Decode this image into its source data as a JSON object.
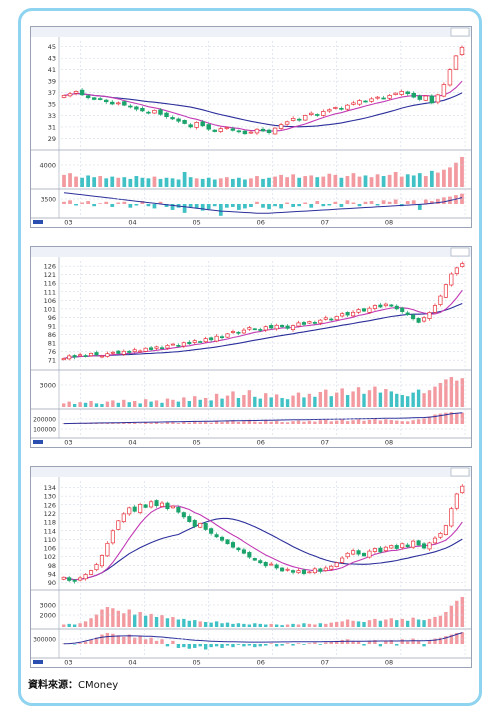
{
  "source": {
    "label": "資料來源：",
    "value": "CMoney"
  },
  "colors": {
    "up": "#e8323c",
    "down": "#1aa36a",
    "ma_short": "#c23bb5",
    "ma_long": "#2b2f9a",
    "vol_up": "#f29aa0",
    "vol_down": "#3fc1c6",
    "grid": "#c9d2e2"
  },
  "chart_data": [
    {
      "type": "candlestick",
      "price": {
        "y_ticks": [
          45,
          43,
          41,
          39,
          37,
          35,
          33,
          31,
          29
        ],
        "ylim": [
          27.5,
          46
        ],
        "closes": [
          36.5,
          36.8,
          37.2,
          36.6,
          36.1,
          35.8,
          35.9,
          35.4,
          35.0,
          35.2,
          34.8,
          34.5,
          34.1,
          33.8,
          33.5,
          33.9,
          33.2,
          32.8,
          32.4,
          32.0,
          31.6,
          31.0,
          31.8,
          31.2,
          30.6,
          30.2,
          30.7,
          30.9,
          30.4,
          30.2,
          29.8,
          30.1,
          30.6,
          30.3,
          30.0,
          30.8,
          31.4,
          31.9,
          32.5,
          32.2,
          33.0,
          33.4,
          33.1,
          33.7,
          34.0,
          34.4,
          34.1,
          34.8,
          35.2,
          35.6,
          35.4,
          35.9,
          36.2,
          36.0,
          36.5,
          36.9,
          37.2,
          36.8,
          36.2,
          35.8,
          36.4,
          35.2,
          36.6,
          38.4,
          41.0,
          43.4,
          44.9
        ]
      },
      "volume": {
        "y_ticks": [
          4000
        ],
        "values": [
          2.1,
          2.4,
          1.8,
          1.6,
          2.0,
          1.7,
          1.9,
          1.5,
          1.8,
          1.6,
          1.7,
          1.4,
          1.9,
          1.6,
          1.5,
          1.8,
          1.4,
          1.6,
          1.5,
          1.3,
          2.6,
          1.7,
          1.5,
          1.4,
          1.6,
          1.3,
          1.5,
          1.7,
          1.4,
          1.6,
          1.3,
          1.5,
          1.9,
          1.4,
          1.6,
          1.8,
          2.1,
          1.7,
          2.2,
          1.6,
          1.9,
          2.0,
          1.7,
          1.8,
          2.3,
          2.1,
          1.6,
          1.9,
          2.4,
          1.8,
          2.0,
          1.7,
          2.2,
          1.9,
          2.1,
          2.6,
          1.8,
          2.2,
          2.0,
          2.4,
          1.9,
          2.8,
          2.5,
          3.0,
          3.4,
          4.2,
          5.2
        ]
      },
      "indicator": {
        "y_ticks": [
          3500
        ],
        "bars": [
          0.3,
          0.5,
          -0.2,
          0.2,
          0.4,
          -0.3,
          0.1,
          0.3,
          -0.4,
          0.2,
          0.3,
          -0.5,
          -0.2,
          0.4,
          -0.3,
          -0.6,
          0.3,
          -0.4,
          -0.8,
          -0.5,
          -1.2,
          -0.4,
          -0.6,
          -0.9,
          -0.7,
          -0.3,
          -1.6,
          -0.5,
          -0.4,
          -0.8,
          -0.6,
          -0.4,
          0.3,
          -0.5,
          -0.7,
          -0.3,
          -0.6,
          0.2,
          -0.4,
          -0.3,
          0.2,
          -0.5,
          0.4,
          -0.3,
          -0.2,
          0.3,
          -0.4,
          0.5,
          0.2,
          -0.3,
          0.3,
          0.4,
          -0.2,
          0.5,
          0.3,
          0.6,
          -0.3,
          0.4,
          0.5,
          -0.8,
          0.6,
          0.4,
          0.7,
          0.9,
          1.0,
          1.2,
          1.4
        ],
        "line": [
          1.6,
          1.5,
          1.4,
          1.3,
          1.2,
          1.1,
          1.0,
          0.9,
          0.8,
          0.7,
          0.6,
          0.5,
          0.4,
          0.3,
          0.2,
          0.1,
          0.0,
          -0.1,
          -0.2,
          -0.3,
          -0.4,
          -0.5,
          -0.6,
          -0.7,
          -0.8,
          -0.9,
          -1.0,
          -1.05,
          -1.1,
          -1.15,
          -1.2,
          -1.25,
          -1.3,
          -1.3,
          -1.3,
          -1.25,
          -1.2,
          -1.15,
          -1.1,
          -1.05,
          -1.0,
          -0.95,
          -0.9,
          -0.85,
          -0.8,
          -0.75,
          -0.7,
          -0.65,
          -0.6,
          -0.55,
          -0.5,
          -0.45,
          -0.4,
          -0.35,
          -0.3,
          -0.25,
          -0.2,
          -0.15,
          -0.1,
          -0.05,
          0.0,
          0.1,
          0.2,
          0.3,
          0.5,
          0.7,
          0.9
        ]
      },
      "x_labels": [
        "03",
        "04",
        "05",
        "06",
        "07",
        "08"
      ]
    },
    {
      "type": "candlestick",
      "price": {
        "y_ticks": [
          126,
          121,
          116,
          111,
          106,
          101,
          96,
          91,
          86,
          81,
          76,
          71
        ],
        "ylim": [
          67,
          129
        ],
        "closes": [
          72.0,
          73.5,
          72.8,
          74.2,
          73.6,
          75.0,
          74.1,
          73.4,
          74.8,
          75.6,
          74.9,
          76.2,
          75.5,
          77.1,
          76.4,
          78.0,
          77.2,
          78.8,
          78.1,
          79.6,
          80.4,
          79.5,
          81.2,
          80.6,
          82.4,
          81.8,
          83.6,
          82.9,
          85.0,
          84.2,
          86.4,
          87.8,
          86.9,
          88.6,
          90.1,
          89.2,
          88.4,
          90.6,
          89.8,
          91.4,
          90.5,
          89.6,
          91.2,
          92.8,
          91.9,
          93.6,
          92.7,
          94.4,
          95.8,
          94.9,
          96.6,
          98.2,
          97.4,
          99.0,
          100.6,
          99.7,
          101.4,
          103.0,
          102.1,
          103.8,
          102.6,
          101.0,
          99.4,
          97.6,
          95.2,
          93.1,
          95.8,
          98.9,
          103.0,
          108.5,
          115.2,
          121.4,
          125.0,
          127.5
        ]
      },
      "volume": {
        "y_ticks": [
          3000
        ],
        "values": [
          0.6,
          0.9,
          0.5,
          0.8,
          0.7,
          1.0,
          0.6,
          0.5,
          0.9,
          1.1,
          0.7,
          1.2,
          0.8,
          1.0,
          0.6,
          1.3,
          0.9,
          1.1,
          0.7,
          1.4,
          1.2,
          0.9,
          1.6,
          1.0,
          1.8,
          1.2,
          1.5,
          1.1,
          2.2,
          1.4,
          1.9,
          2.6,
          1.5,
          2.0,
          2.8,
          1.7,
          1.4,
          2.3,
          1.6,
          2.1,
          1.5,
          1.3,
          1.9,
          2.4,
          1.6,
          2.2,
          1.7,
          2.5,
          2.9,
          1.8,
          2.4,
          3.1,
          2.0,
          2.6,
          3.3,
          2.2,
          2.8,
          3.4,
          2.4,
          3.0,
          2.6,
          2.2,
          2.0,
          1.8,
          2.4,
          2.9,
          2.3,
          2.8,
          3.4,
          4.0,
          4.6,
          5.0,
          4.4,
          4.8
        ]
      },
      "indicator": {
        "y_ticks": [
          200000,
          100000
        ],
        "bars": [
          0.05,
          0.1,
          0.05,
          0.1,
          0.08,
          0.12,
          0.05,
          0.06,
          0.1,
          0.15,
          0.08,
          0.18,
          0.1,
          0.14,
          0.06,
          0.2,
          0.12,
          0.16,
          0.08,
          0.22,
          0.2,
          0.1,
          0.25,
          0.15,
          0.3,
          0.18,
          0.24,
          0.14,
          0.35,
          0.2,
          0.3,
          0.4,
          0.22,
          0.3,
          0.45,
          0.26,
          0.2,
          0.38,
          0.24,
          0.32,
          0.2,
          0.18,
          0.3,
          0.36,
          0.24,
          0.34,
          0.26,
          0.4,
          0.46,
          0.28,
          0.36,
          0.5,
          0.3,
          0.4,
          0.55,
          0.34,
          0.44,
          0.56,
          0.38,
          0.5,
          0.42,
          0.36,
          0.3,
          0.28,
          0.4,
          0.5,
          0.6,
          0.8,
          1.0,
          1.1,
          1.2,
          1.25,
          1.1,
          1.2
        ],
        "line": [
          0.05,
          0.06,
          0.07,
          0.08,
          0.09,
          0.1,
          0.11,
          0.12,
          0.13,
          0.14,
          0.15,
          0.16,
          0.17,
          0.18,
          0.19,
          0.2,
          0.21,
          0.22,
          0.23,
          0.24,
          0.25,
          0.26,
          0.27,
          0.28,
          0.29,
          0.3,
          0.31,
          0.32,
          0.33,
          0.34,
          0.35,
          0.36,
          0.37,
          0.38,
          0.39,
          0.4,
          0.41,
          0.42,
          0.43,
          0.44,
          0.45,
          0.46,
          0.47,
          0.48,
          0.49,
          0.5,
          0.51,
          0.52,
          0.53,
          0.54,
          0.55,
          0.56,
          0.57,
          0.58,
          0.59,
          0.6,
          0.61,
          0.62,
          0.63,
          0.64,
          0.65,
          0.66,
          0.67,
          0.68,
          0.7,
          0.72,
          0.74,
          0.78,
          0.85,
          0.95,
          1.05,
          1.15,
          1.22,
          1.28
        ]
      },
      "x_labels": [
        "03",
        "04",
        "05",
        "06",
        "07",
        "08"
      ]
    },
    {
      "type": "candlestick",
      "price": {
        "y_ticks": [
          134,
          130,
          126,
          122,
          118,
          114,
          110,
          106,
          102,
          98,
          94,
          90
        ],
        "ylim": [
          88,
          137
        ],
        "closes": [
          92.5,
          91.0,
          90.6,
          92.2,
          93.8,
          95.6,
          98.4,
          102.6,
          108.2,
          114.0,
          118.6,
          121.8,
          124.6,
          123.0,
          126.2,
          124.8,
          127.4,
          125.6,
          126.8,
          124.2,
          125.4,
          122.6,
          120.4,
          118.2,
          116.0,
          117.4,
          114.6,
          112.8,
          111.2,
          109.6,
          108.0,
          106.4,
          105.2,
          103.6,
          101.8,
          100.4,
          99.2,
          97.8,
          98.6,
          96.8,
          95.4,
          96.2,
          94.8,
          95.6,
          94.2,
          95.0,
          96.4,
          95.2,
          96.8,
          97.6,
          99.2,
          101.4,
          103.6,
          104.8,
          103.2,
          102.4,
          104.6,
          105.8,
          104.2,
          106.4,
          107.2,
          105.8,
          108.0,
          106.6,
          109.2,
          107.4,
          106.0,
          108.4,
          110.6,
          112.8,
          116.4,
          124.2,
          131.0,
          134.6
        ]
      },
      "volume": {
        "y_ticks": [
          3000,
          2000
        ],
        "values": [
          0.4,
          0.5,
          0.4,
          0.6,
          0.9,
          1.4,
          2.0,
          2.8,
          3.2,
          3.0,
          2.6,
          2.2,
          2.8,
          2.0,
          2.4,
          1.8,
          2.1,
          1.6,
          1.9,
          1.4,
          1.6,
          1.2,
          1.3,
          1.0,
          1.1,
          0.9,
          0.8,
          0.7,
          0.9,
          0.6,
          0.7,
          0.5,
          0.6,
          0.5,
          0.4,
          0.6,
          0.5,
          0.4,
          0.5,
          0.4,
          0.3,
          0.4,
          0.5,
          0.4,
          0.6,
          0.5,
          0.4,
          0.6,
          0.5,
          0.7,
          0.8,
          0.9,
          1.2,
          1.0,
          0.9,
          0.8,
          1.1,
          1.3,
          1.0,
          1.2,
          1.4,
          1.1,
          1.3,
          1.0,
          1.5,
          1.2,
          1.1,
          1.3,
          1.6,
          1.8,
          2.4,
          3.4,
          4.2,
          4.8
        ]
      },
      "indicator": {
        "y_ticks": [
          300000
        ],
        "bars": [
          0.05,
          0.1,
          -0.05,
          0.12,
          0.3,
          0.5,
          0.8,
          1.2,
          1.4,
          1.3,
          1.1,
          0.9,
          1.2,
          0.8,
          1.0,
          0.6,
          0.8,
          0.4,
          0.6,
          -0.3,
          0.4,
          -0.5,
          -0.4,
          -0.6,
          -0.5,
          -0.3,
          -0.7,
          -0.4,
          -0.3,
          -0.5,
          -0.2,
          -0.4,
          -0.1,
          -0.3,
          -0.2,
          -0.4,
          -0.3,
          -0.2,
          0.1,
          -0.3,
          -0.2,
          0.1,
          -0.2,
          0.1,
          -0.1,
          0.1,
          0.2,
          -0.1,
          0.2,
          0.3,
          0.4,
          0.5,
          0.6,
          0.4,
          0.3,
          -0.2,
          0.4,
          0.5,
          -0.3,
          0.4,
          0.5,
          -0.2,
          0.6,
          0.3,
          0.7,
          0.4,
          -0.3,
          0.5,
          0.7,
          0.8,
          1.0,
          1.2,
          1.4,
          1.5
        ],
        "line": [
          0.02,
          0.05,
          0.1,
          0.2,
          0.35,
          0.5,
          0.65,
          0.78,
          0.85,
          0.9,
          0.92,
          0.93,
          0.94,
          0.93,
          0.92,
          0.9,
          0.88,
          0.84,
          0.8,
          0.74,
          0.68,
          0.62,
          0.56,
          0.5,
          0.44,
          0.4,
          0.36,
          0.32,
          0.3,
          0.28,
          0.26,
          0.25,
          0.24,
          0.23,
          0.22,
          0.22,
          0.22,
          0.22,
          0.23,
          0.23,
          0.24,
          0.24,
          0.25,
          0.25,
          0.26,
          0.26,
          0.27,
          0.27,
          0.28,
          0.28,
          0.29,
          0.3,
          0.31,
          0.31,
          0.32,
          0.32,
          0.33,
          0.33,
          0.34,
          0.34,
          0.35,
          0.35,
          0.36,
          0.36,
          0.37,
          0.37,
          0.38,
          0.4,
          0.45,
          0.55,
          0.7,
          0.9,
          1.1,
          1.3
        ]
      },
      "x_labels": [
        "03",
        "04",
        "05",
        "06",
        "07",
        "08"
      ]
    }
  ]
}
